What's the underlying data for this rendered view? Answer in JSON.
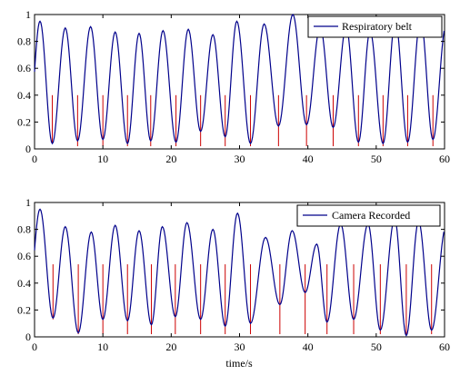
{
  "chart_data": [
    {
      "type": "line",
      "title": "",
      "xlabel": "",
      "ylabel": "",
      "xlim": [
        0,
        60
      ],
      "ylim": [
        0,
        1
      ],
      "xticks": [
        0,
        10,
        20,
        30,
        40,
        50,
        60
      ],
      "yticks": [
        0,
        0.2,
        0.4,
        0.6,
        0.8,
        1
      ],
      "xtick_labels": [
        "0",
        "10",
        "20",
        "30",
        "40",
        "50",
        "60"
      ],
      "ytick_labels": [
        "0",
        "0.2",
        "0.4",
        "0.6",
        "0.8",
        "1"
      ],
      "grid": false,
      "legend_position": "top-right",
      "legend_label": "Respiratory belt",
      "line_color": "#00008b",
      "marker_color": "#cc0000",
      "peaks": [
        {
          "t": 0.8,
          "v": 0.95
        },
        {
          "t": 4.5,
          "v": 0.9
        },
        {
          "t": 8.2,
          "v": 0.91
        },
        {
          "t": 11.8,
          "v": 0.87
        },
        {
          "t": 15.3,
          "v": 0.86
        },
        {
          "t": 18.8,
          "v": 0.88
        },
        {
          "t": 22.5,
          "v": 0.89
        },
        {
          "t": 26.1,
          "v": 0.85
        },
        {
          "t": 29.6,
          "v": 0.95
        },
        {
          "t": 33.6,
          "v": 0.93
        },
        {
          "t": 37.8,
          "v": 1.0
        },
        {
          "t": 41.8,
          "v": 0.91
        },
        {
          "t": 45.6,
          "v": 0.91
        },
        {
          "t": 49.1,
          "v": 0.88
        },
        {
          "t": 52.8,
          "v": 0.96
        },
        {
          "t": 56.5,
          "v": 0.97
        },
        {
          "t": 60.2,
          "v": 0.92
        }
      ],
      "troughs": [
        {
          "t": 2.6,
          "v": 0.04
        },
        {
          "t": 6.3,
          "v": 0.06
        },
        {
          "t": 10.0,
          "v": 0.07
        },
        {
          "t": 13.6,
          "v": 0.04
        },
        {
          "t": 17.0,
          "v": 0.06
        },
        {
          "t": 20.7,
          "v": 0.05
        },
        {
          "t": 24.3,
          "v": 0.13
        },
        {
          "t": 27.9,
          "v": 0.09
        },
        {
          "t": 31.6,
          "v": 0.04
        },
        {
          "t": 35.7,
          "v": 0.17
        },
        {
          "t": 39.8,
          "v": 0.18
        },
        {
          "t": 43.7,
          "v": 0.16
        },
        {
          "t": 47.4,
          "v": 0.05
        },
        {
          "t": 51.0,
          "v": 0.04
        },
        {
          "t": 54.6,
          "v": 0.05
        },
        {
          "t": 58.3,
          "v": 0.07
        }
      ],
      "markers": [
        {
          "t": 2.6,
          "top": 0.4,
          "bottom": 0.04
        },
        {
          "t": 6.3,
          "top": 0.4,
          "bottom": 0.02
        },
        {
          "t": 10.0,
          "top": 0.4,
          "bottom": 0.02
        },
        {
          "t": 13.6,
          "top": 0.4,
          "bottom": 0.02
        },
        {
          "t": 17.0,
          "top": 0.4,
          "bottom": 0.02
        },
        {
          "t": 20.7,
          "top": 0.4,
          "bottom": 0.02
        },
        {
          "t": 24.3,
          "top": 0.4,
          "bottom": 0.02
        },
        {
          "t": 27.9,
          "top": 0.4,
          "bottom": 0.02
        },
        {
          "t": 31.6,
          "top": 0.4,
          "bottom": 0.02
        },
        {
          "t": 35.7,
          "top": 0.4,
          "bottom": 0.02
        },
        {
          "t": 39.8,
          "top": 0.4,
          "bottom": 0.02
        },
        {
          "t": 43.7,
          "top": 0.4,
          "bottom": 0.02
        },
        {
          "t": 47.4,
          "top": 0.4,
          "bottom": 0.02
        },
        {
          "t": 51.0,
          "top": 0.4,
          "bottom": 0.02
        },
        {
          "t": 54.6,
          "top": 0.4,
          "bottom": 0.02
        },
        {
          "t": 58.3,
          "top": 0.4,
          "bottom": 0.02
        }
      ]
    },
    {
      "type": "line",
      "title": "",
      "xlabel": "time/s",
      "ylabel": "",
      "xlim": [
        0,
        60
      ],
      "ylim": [
        0,
        1
      ],
      "xticks": [
        0,
        10,
        20,
        30,
        40,
        50,
        60
      ],
      "yticks": [
        0,
        0.2,
        0.4,
        0.6,
        0.8,
        1
      ],
      "xtick_labels": [
        "0",
        "10",
        "20",
        "30",
        "40",
        "50",
        "60"
      ],
      "ytick_labels": [
        "0",
        "0.2",
        "0.4",
        "0.6",
        "0.8",
        "1"
      ],
      "grid": false,
      "legend_position": "top-right",
      "legend_label": "Camera Recorded",
      "line_color": "#00008b",
      "marker_color": "#cc0000",
      "peaks": [
        {
          "t": 0.8,
          "v": 0.95
        },
        {
          "t": 4.5,
          "v": 0.82
        },
        {
          "t": 8.3,
          "v": 0.78
        },
        {
          "t": 11.8,
          "v": 0.83
        },
        {
          "t": 15.3,
          "v": 0.79
        },
        {
          "t": 18.7,
          "v": 0.82
        },
        {
          "t": 22.3,
          "v": 0.85
        },
        {
          "t": 26.1,
          "v": 0.8
        },
        {
          "t": 29.7,
          "v": 0.92
        },
        {
          "t": 33.8,
          "v": 0.74
        },
        {
          "t": 37.7,
          "v": 0.79
        },
        {
          "t": 41.3,
          "v": 0.69
        },
        {
          "t": 44.8,
          "v": 0.84
        },
        {
          "t": 48.8,
          "v": 0.84
        },
        {
          "t": 52.7,
          "v": 0.88
        },
        {
          "t": 56.2,
          "v": 0.86
        },
        {
          "t": 60.2,
          "v": 0.82
        }
      ],
      "troughs": [
        {
          "t": 2.7,
          "v": 0.14
        },
        {
          "t": 6.4,
          "v": 0.03
        },
        {
          "t": 10.0,
          "v": 0.13
        },
        {
          "t": 13.6,
          "v": 0.12
        },
        {
          "t": 17.1,
          "v": 0.09
        },
        {
          "t": 20.6,
          "v": 0.15
        },
        {
          "t": 24.3,
          "v": 0.13
        },
        {
          "t": 27.9,
          "v": 0.08
        },
        {
          "t": 31.6,
          "v": 0.1
        },
        {
          "t": 35.9,
          "v": 0.24
        },
        {
          "t": 39.6,
          "v": 0.33
        },
        {
          "t": 42.8,
          "v": 0.11
        },
        {
          "t": 46.7,
          "v": 0.13
        },
        {
          "t": 50.6,
          "v": 0.05
        },
        {
          "t": 54.4,
          "v": 0.01
        },
        {
          "t": 58.1,
          "v": 0.05
        }
      ],
      "markers": [
        {
          "t": 2.7,
          "top": 0.54,
          "bottom": 0.13
        },
        {
          "t": 6.4,
          "top": 0.54,
          "bottom": 0.02
        },
        {
          "t": 10.0,
          "top": 0.54,
          "bottom": 0.02
        },
        {
          "t": 13.6,
          "top": 0.54,
          "bottom": 0.02
        },
        {
          "t": 17.1,
          "top": 0.54,
          "bottom": 0.02
        },
        {
          "t": 20.6,
          "top": 0.54,
          "bottom": 0.02
        },
        {
          "t": 24.3,
          "top": 0.54,
          "bottom": 0.02
        },
        {
          "t": 27.9,
          "top": 0.54,
          "bottom": 0.02
        },
        {
          "t": 31.6,
          "top": 0.54,
          "bottom": 0.02
        },
        {
          "t": 35.9,
          "top": 0.54,
          "bottom": 0.02
        },
        {
          "t": 39.6,
          "top": 0.54,
          "bottom": 0.02
        },
        {
          "t": 42.8,
          "top": 0.54,
          "bottom": 0.02
        },
        {
          "t": 46.7,
          "top": 0.54,
          "bottom": 0.02
        },
        {
          "t": 50.6,
          "top": 0.54,
          "bottom": 0.02
        },
        {
          "t": 54.4,
          "top": 0.54,
          "bottom": 0.02
        },
        {
          "t": 58.1,
          "top": 0.54,
          "bottom": 0.02
        }
      ]
    }
  ]
}
